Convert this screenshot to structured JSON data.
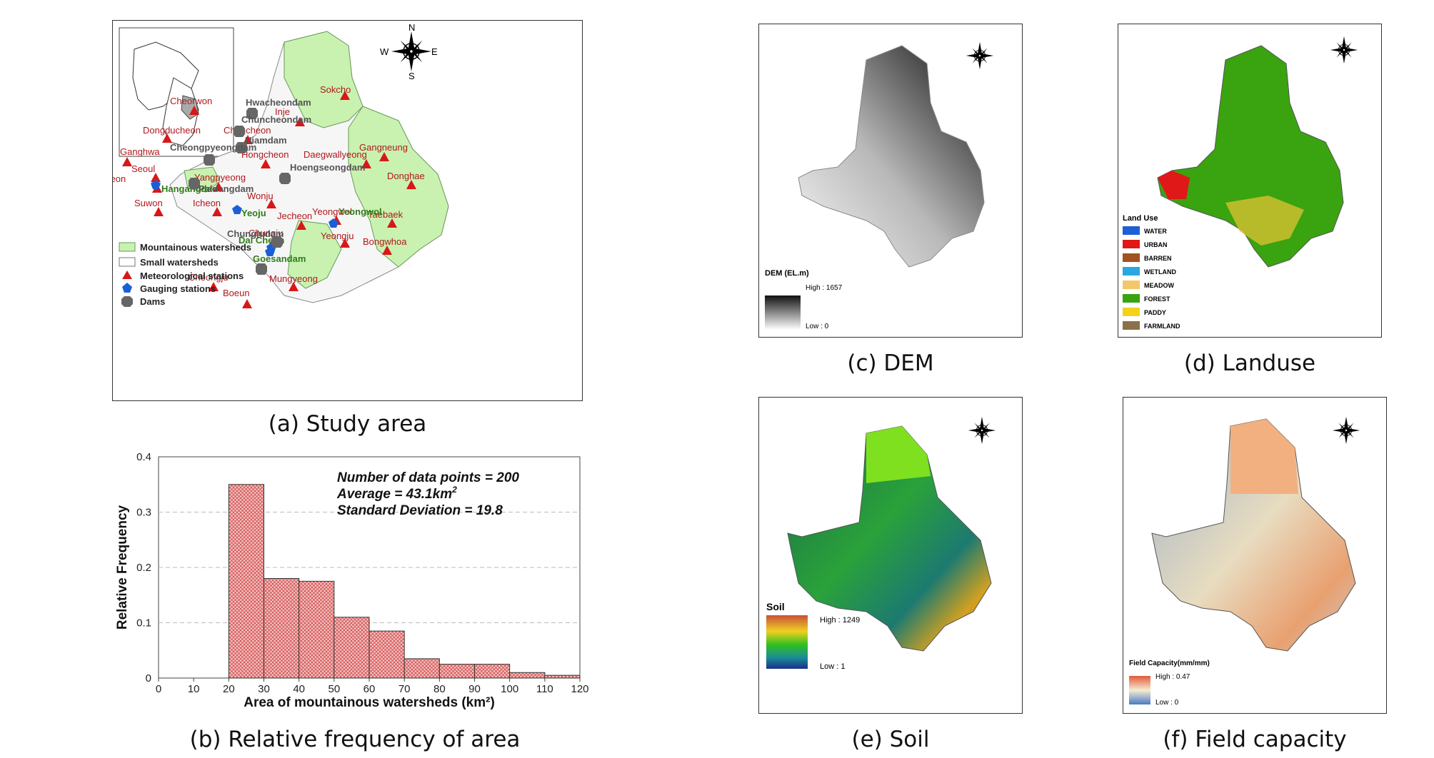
{
  "captions": {
    "a": "(a) Study area",
    "b": "(b) Relative frequency of area",
    "c": "(c) DEM",
    "d": "(d) Landuse",
    "e": "(e) Soil",
    "f": "(f) Field capacity"
  },
  "compass": {
    "n": "N",
    "s": "S",
    "e": "E",
    "w": "W"
  },
  "study_area": {
    "legend": [
      {
        "label": "Mountainous watersheds",
        "symbol": "green-box"
      },
      {
        "label": "Small watersheds",
        "symbol": "white-box"
      },
      {
        "label": "Meteorological stations",
        "symbol": "red-triangle"
      },
      {
        "label": "Gauging stations",
        "symbol": "blue-pentagon"
      },
      {
        "label": "Dams",
        "symbol": "gray-octagon"
      }
    ],
    "meteorological_stations": [
      "Sokcho",
      "Cheorwon",
      "Inje",
      "Dongducheon",
      "Chuncheon",
      "Ganghwa",
      "Gangneung",
      "Daegwallyeong",
      "Hongcheon",
      "Seoul",
      "Incheon",
      "Donghae",
      "Yangpyeong",
      "Wonju",
      "Icheon",
      "Suwon",
      "Jecheon",
      "Taebaek",
      "Yeongwol",
      "Chungju",
      "Bongwhoa",
      "Yeongju",
      "Cheongju",
      "Mungyeong",
      "Boeun"
    ],
    "gauging_stations": [
      "Hangangdae",
      "Yeoju",
      "Yeongwol",
      "Dal Cheon",
      "Goesandam"
    ],
    "dams": [
      "Hwacheondam",
      "Chuncheondam",
      "Uiamdam",
      "Cheongpyeongdam",
      "Hoengseongdam",
      "Paldangdam",
      "Chungjudam",
      "Goesandam"
    ]
  },
  "chart_data": {
    "type": "bar",
    "xlabel": "Area of mountainous watersheds (km²)",
    "ylabel": "Relative Frequency",
    "x_ticks": [
      "0",
      "10",
      "20",
      "30",
      "40",
      "50",
      "60",
      "70",
      "80",
      "90",
      "100",
      "110",
      "120"
    ],
    "y_ticks": [
      "0",
      "0.1",
      "0.2",
      "0.3",
      "0.4"
    ],
    "xlim": [
      0,
      120
    ],
    "ylim": [
      0,
      0.4
    ],
    "grid": "horizontal dashed",
    "bins": [
      [
        20,
        30
      ],
      [
        30,
        40
      ],
      [
        40,
        50
      ],
      [
        50,
        60
      ],
      [
        60,
        70
      ],
      [
        70,
        80
      ],
      [
        80,
        90
      ],
      [
        90,
        100
      ],
      [
        100,
        110
      ],
      [
        110,
        120
      ]
    ],
    "values": [
      0.35,
      0.18,
      0.175,
      0.11,
      0.085,
      0.035,
      0.025,
      0.025,
      0.01,
      0.005
    ],
    "annotations": [
      "Number of data points = 200",
      "Average = 43.1km",
      "Standard Deviation = 19.8"
    ],
    "annotation_superscript": "2",
    "bar_color": "#e58b8b"
  },
  "dem": {
    "legend_title": "DEM (EL.m)",
    "high": "High : 1657",
    "low": "Low : 0"
  },
  "landuse": {
    "legend_title": "Land Use",
    "classes": [
      {
        "label": "WATER",
        "color": "#1f5fd6"
      },
      {
        "label": "URBAN",
        "color": "#e01818"
      },
      {
        "label": "BARREN",
        "color": "#a1521f"
      },
      {
        "label": "WETLAND",
        "color": "#28a8e0"
      },
      {
        "label": "MEADOW",
        "color": "#f2c86a"
      },
      {
        "label": "FOREST",
        "color": "#3aa310"
      },
      {
        "label": "PADDY",
        "color": "#f4d21a"
      },
      {
        "label": "FARMLAND",
        "color": "#8b7048"
      }
    ]
  },
  "soil": {
    "legend_title": "Soil",
    "high": "High : 1249",
    "low": "Low : 1"
  },
  "field_capacity": {
    "legend_title": "Field Capacity(mm/mm)",
    "high": "High : 0.47",
    "low": "Low : 0"
  }
}
